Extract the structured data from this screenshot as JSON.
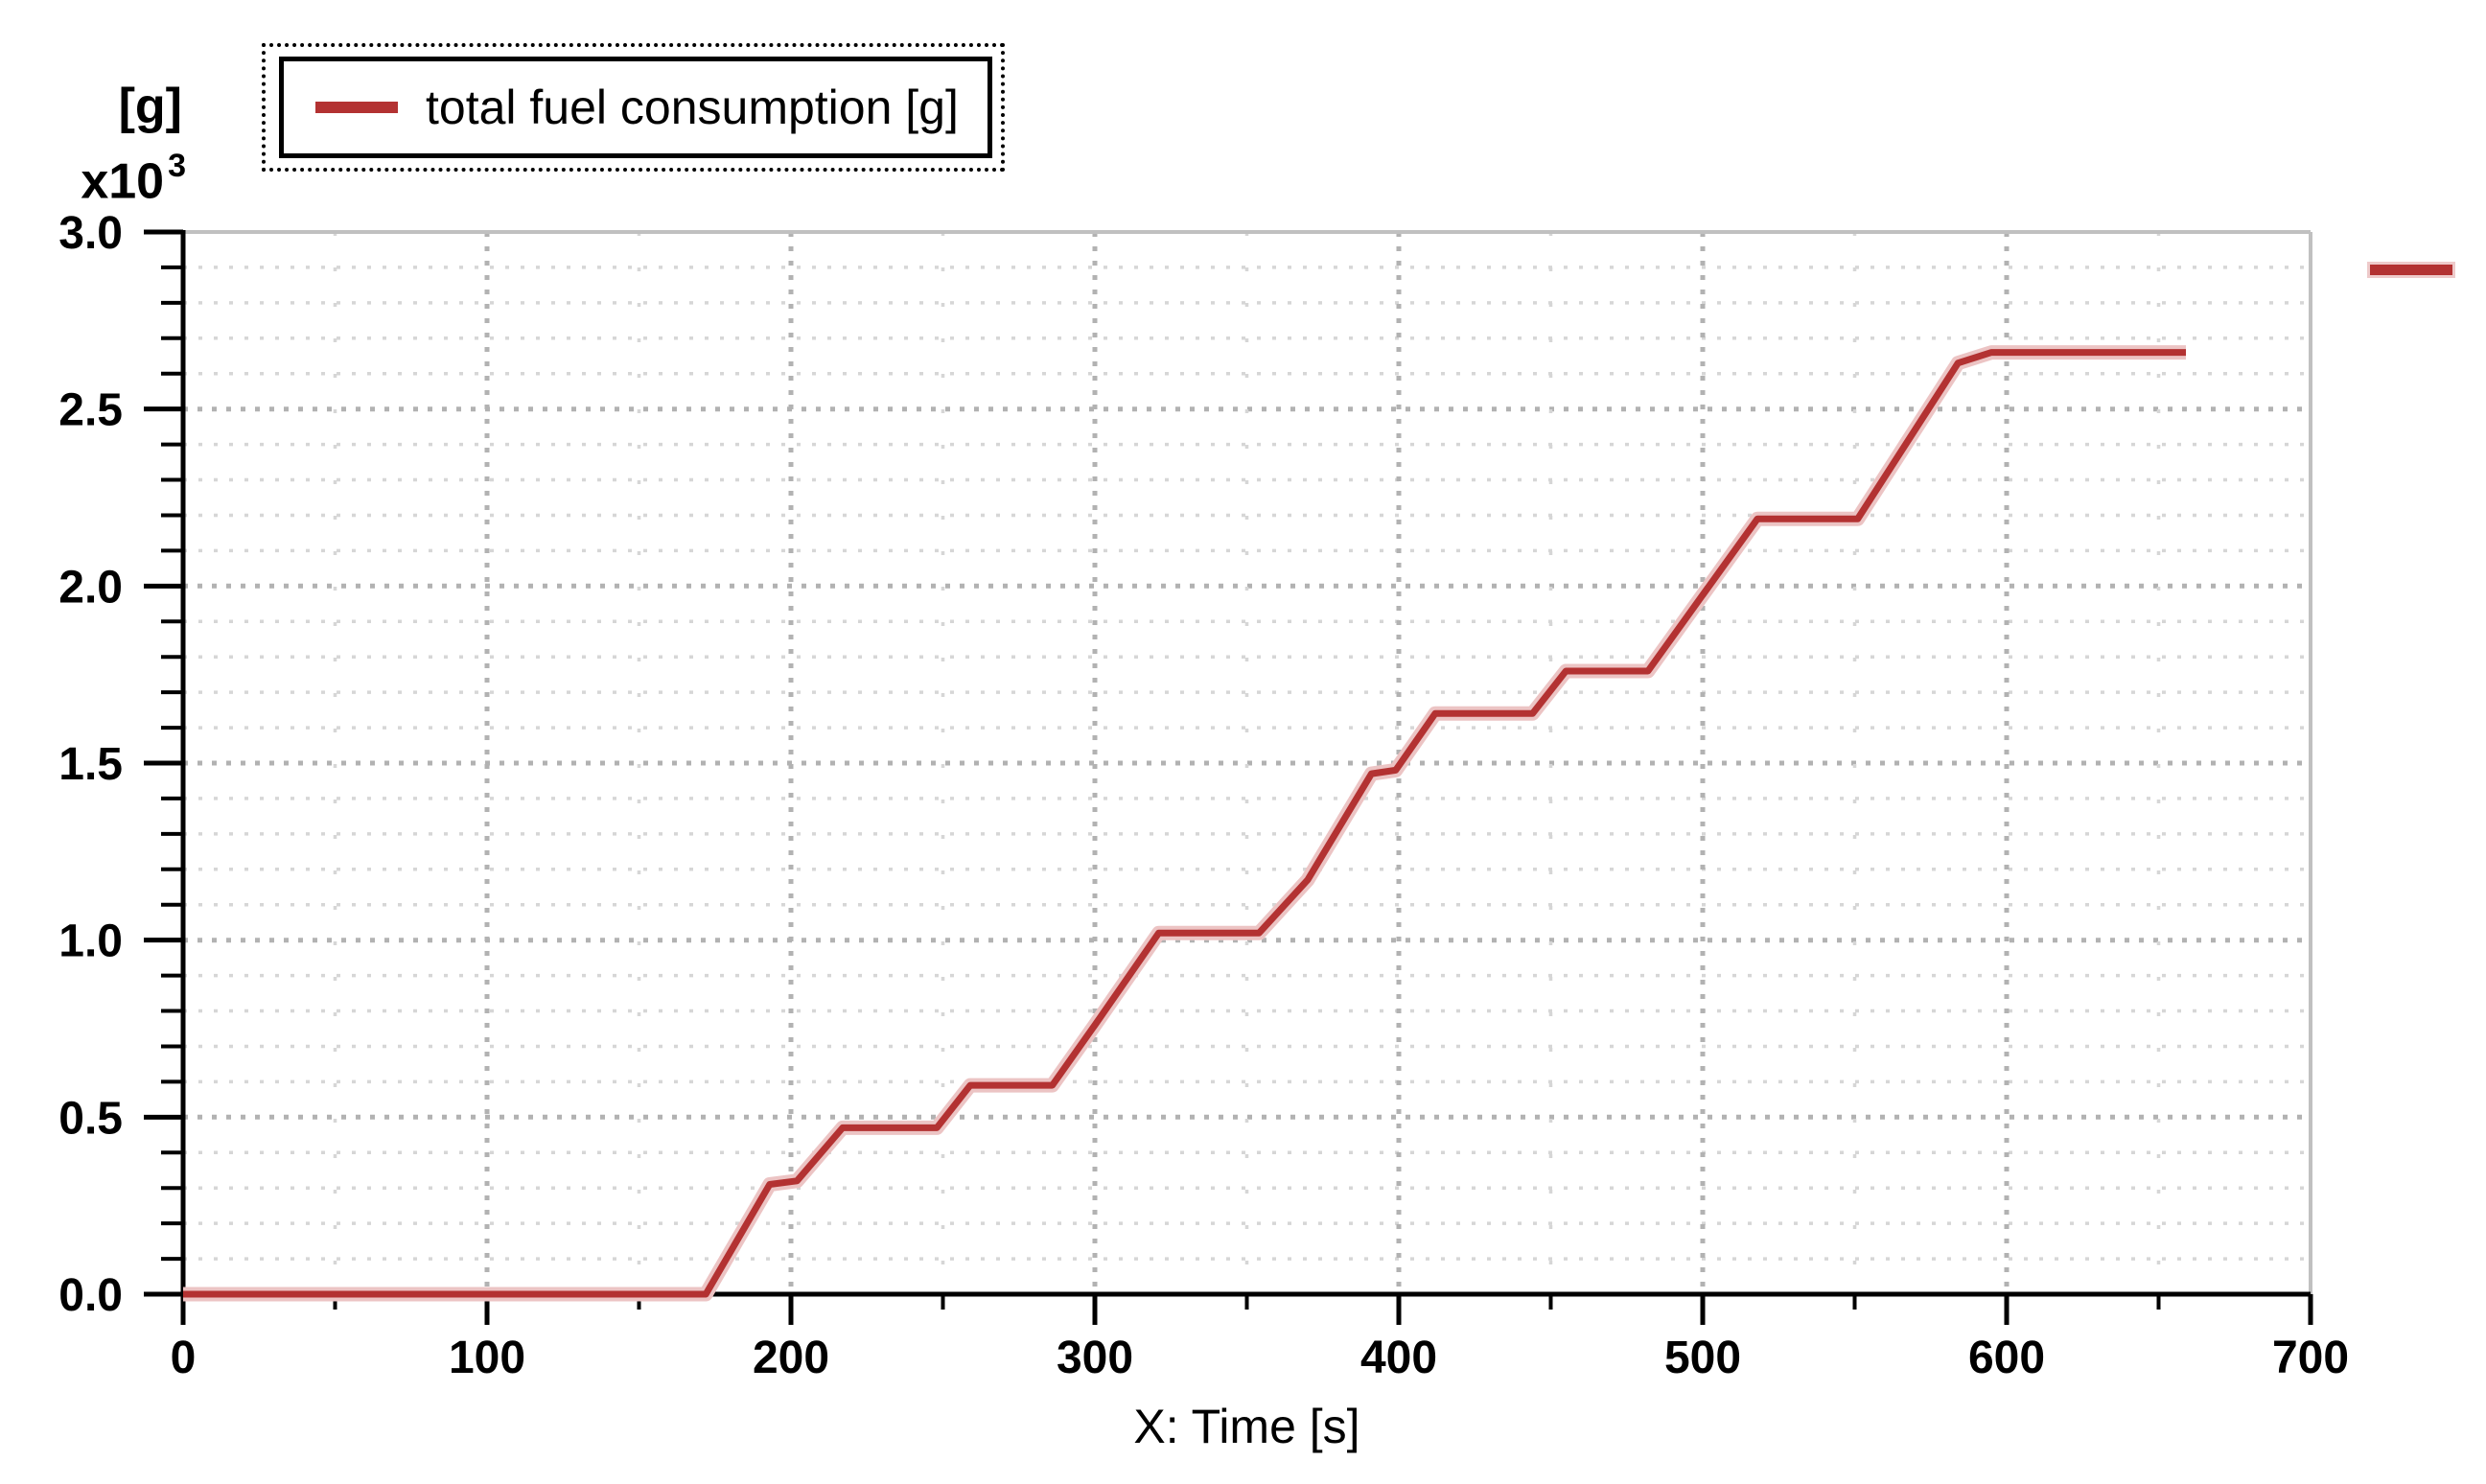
{
  "legend": {
    "label": "total fuel consumption [g]"
  },
  "y_axis": {
    "unit": "[g]",
    "scale_base": "x10",
    "scale_exponent": "3",
    "min": 0.0,
    "max": 3.0,
    "major_step": 0.5,
    "minor_step": 0.1,
    "tick_labels": [
      "0.0",
      "0.5",
      "1.0",
      "1.5",
      "2.0",
      "2.5",
      "3.0"
    ]
  },
  "x_axis": {
    "title": "X: Time [s]",
    "min": 0,
    "max": 700,
    "major_step": 100,
    "minor_step": 50,
    "tick_labels": [
      "0",
      "100",
      "200",
      "300",
      "400",
      "500",
      "600",
      "700"
    ]
  },
  "colors": {
    "line": "#b33232",
    "line_halo": "#ecc4c4",
    "grid_minor": "#d6d6d6",
    "grid_major": "#b2b2b2",
    "frame": "#c0c0c0",
    "axis": "#000000",
    "text": "#000000"
  },
  "chart_data": {
    "type": "line",
    "title": "",
    "xlabel": "X: Time [s]",
    "ylabel": "[g] x10^3",
    "xlim": [
      0,
      700
    ],
    "ylim": [
      0,
      3.0
    ],
    "grid": "dotted, minor 0.1/50 and major 0.5/100",
    "legend_position": "top-left",
    "series": [
      {
        "name": "total fuel consumption [g]",
        "color": "#b33232",
        "units": "g x10^3",
        "points": [
          [
            0,
            0.0
          ],
          [
            172,
            0.0
          ],
          [
            193,
            0.31
          ],
          [
            202,
            0.32
          ],
          [
            217,
            0.47
          ],
          [
            248,
            0.47
          ],
          [
            259,
            0.59
          ],
          [
            286,
            0.59
          ],
          [
            300,
            0.76
          ],
          [
            321,
            1.02
          ],
          [
            354,
            1.02
          ],
          [
            370,
            1.17
          ],
          [
            391,
            1.47
          ],
          [
            399,
            1.48
          ],
          [
            412,
            1.64
          ],
          [
            444,
            1.64
          ],
          [
            455,
            1.76
          ],
          [
            482,
            1.76
          ],
          [
            518,
            2.19
          ],
          [
            551,
            2.19
          ],
          [
            584,
            2.63
          ],
          [
            595,
            2.66
          ],
          [
            659,
            2.66
          ]
        ]
      }
    ]
  }
}
